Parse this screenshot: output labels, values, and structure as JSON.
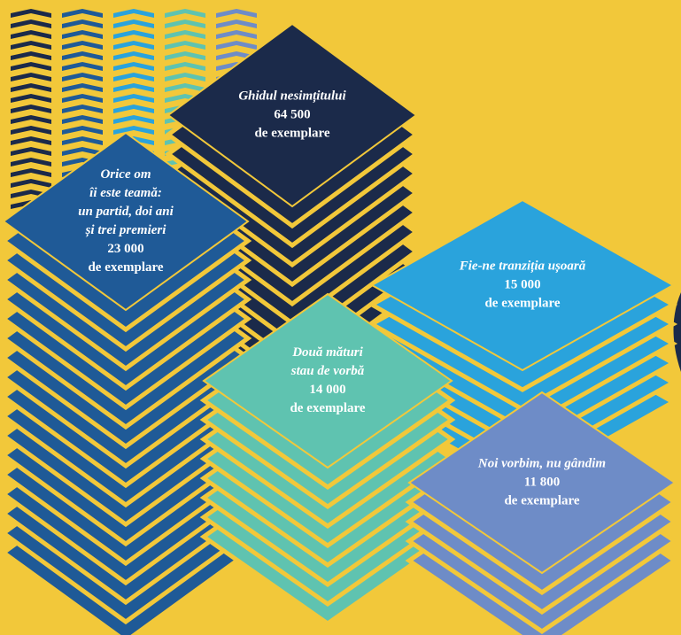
{
  "items": [
    {
      "title_lines": [
        "Ghidul nesimțitului"
      ],
      "copies": "64 500",
      "unit": "de exemplare"
    },
    {
      "title_lines": [
        "Orice om",
        "îi este teamă:",
        "un partid, doi ani",
        "și trei premieri"
      ],
      "copies": "23 000",
      "unit": "de exemplare"
    },
    {
      "title_lines": [
        "Fie-ne tranziția ușoară"
      ],
      "copies": "15 000",
      "unit": "de exemplare"
    },
    {
      "title_lines": [
        "Două mături",
        "stau de vorbă"
      ],
      "copies": "14 000",
      "unit": "de exemplare"
    },
    {
      "title_lines": [
        "Noi vorbim, nu gândim"
      ],
      "copies": "11 800",
      "unit": "de exemplare"
    }
  ]
}
